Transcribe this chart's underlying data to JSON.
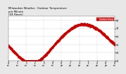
{
  "title": "Milwaukee Weather  Outdoor Temperature\nper Minute\n(24 Hours)",
  "title_fontsize": 2.8,
  "background_color": "#e8e8e8",
  "plot_bg_color": "#ffffff",
  "line_color": "#cc0000",
  "marker": ".",
  "markersize": 1.0,
  "linewidth": 0,
  "ylim": [
    30,
    85
  ],
  "yticks": [
    30,
    40,
    50,
    60,
    70,
    80
  ],
  "ylabel_fontsize": 2.4,
  "xlabel_fontsize": 2.0,
  "legend_label": "Outdoor Temp",
  "legend_color": "#cc0000",
  "legend_text_color": "#ffffff",
  "grid_color": "#bbbbbb",
  "grid_alpha": 0.7,
  "vline_color": "#999999",
  "vline_positions": [
    240,
    480,
    720,
    960,
    1200
  ]
}
